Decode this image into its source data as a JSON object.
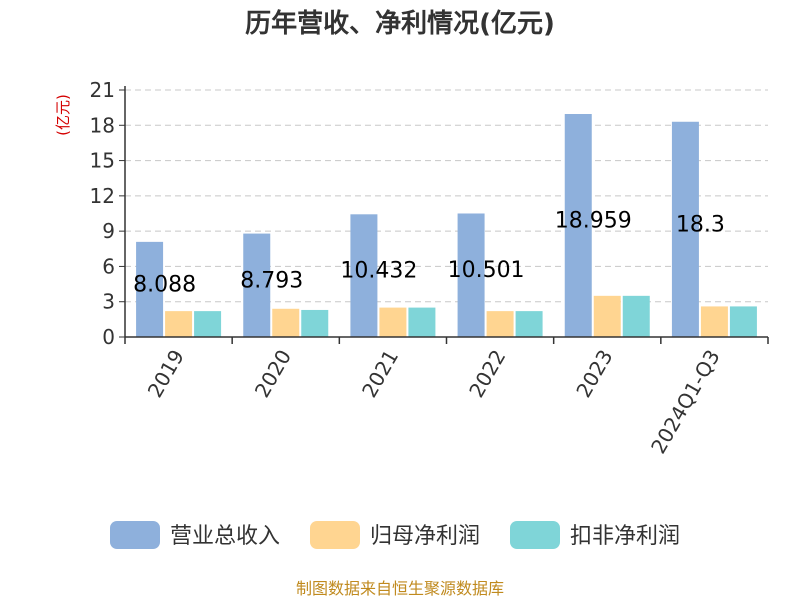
{
  "title": "历年营收、净利情况(亿元)",
  "y_unit": "(亿元)",
  "source": "制图数据来自恒生聚源数据库",
  "colors": {
    "revenue": "#8eb0dc",
    "net_profit": "#ffd591",
    "deducted_profit": "#7fd5d8"
  },
  "chart_data": {
    "type": "bar",
    "title": "历年营收、净利情况(亿元)",
    "ylabel": "(亿元)",
    "categories": [
      "2019",
      "2020",
      "2021",
      "2022",
      "2023",
      "2024Q1-Q3"
    ],
    "yticks": [
      "0",
      "3",
      "6",
      "9",
      "12",
      "15",
      "18",
      "21"
    ],
    "ylim": [
      0,
      21
    ],
    "grid": true,
    "legend_position": "bottom",
    "series": [
      {
        "name": "营业总收入",
        "values": [
          8.088,
          8.793,
          10.432,
          10.501,
          18.959,
          18.3
        ],
        "data_labels": [
          "8.088",
          "8.793",
          "10.432",
          "10.501",
          "18.959",
          "18.3"
        ]
      },
      {
        "name": "归母净利润",
        "values": [
          2.2,
          2.4,
          2.5,
          2.2,
          3.5,
          2.6
        ]
      },
      {
        "name": "扣非净利润",
        "values": [
          2.2,
          2.3,
          2.5,
          2.2,
          3.5,
          2.6
        ]
      }
    ]
  }
}
